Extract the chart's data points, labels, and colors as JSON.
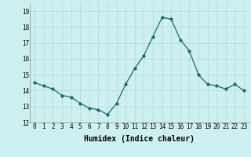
{
  "x": [
    0,
    1,
    2,
    3,
    4,
    5,
    6,
    7,
    8,
    9,
    10,
    11,
    12,
    13,
    14,
    15,
    16,
    17,
    18,
    19,
    20,
    21,
    22,
    23
  ],
  "y": [
    14.5,
    14.3,
    14.1,
    13.7,
    13.6,
    13.2,
    12.9,
    12.8,
    12.5,
    13.2,
    14.4,
    15.4,
    16.2,
    17.4,
    18.6,
    18.5,
    17.2,
    16.5,
    15.0,
    14.4,
    14.3,
    14.1,
    14.4,
    14.0
  ],
  "line_color": "#1a6b6b",
  "marker": "o",
  "marker_size": 2.5,
  "bg_color": "#cff0f0",
  "grid_color": "#b0d8d8",
  "xlabel": "Humidex (Indice chaleur)",
  "ylim": [
    12,
    19.5
  ],
  "xlim": [
    -0.5,
    23.5
  ],
  "yticks": [
    12,
    13,
    14,
    15,
    16,
    17,
    18,
    19
  ],
  "xticks": [
    0,
    1,
    2,
    3,
    4,
    5,
    6,
    7,
    8,
    9,
    10,
    11,
    12,
    13,
    14,
    15,
    16,
    17,
    18,
    19,
    20,
    21,
    22,
    23
  ],
  "label_fontsize": 7,
  "tick_fontsize": 5.5
}
